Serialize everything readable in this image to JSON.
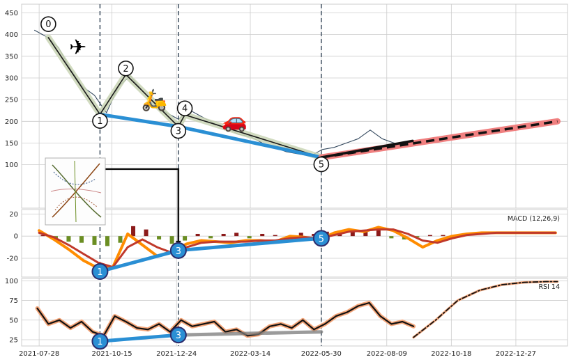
{
  "chart_data": [
    {
      "panel": "price",
      "type": "line",
      "ylim": [
        0,
        470
      ],
      "ytick_labels": [
        "450",
        "400",
        "350",
        "300",
        "250",
        "200",
        "150",
        "100"
      ],
      "yticks": [
        450,
        400,
        350,
        300,
        250,
        200,
        150,
        100
      ],
      "grid": true,
      "series": [
        {
          "role": "close",
          "color": "#34495e",
          "x": [
            "2021-07-23",
            "2021-08-05",
            "2021-08-18",
            "2021-08-31",
            "2021-09-13",
            "2021-09-26",
            "2021-10-09",
            "2021-10-22",
            "2021-11-04",
            "2021-11-17",
            "2021-11-30",
            "2021-12-13",
            "2021-12-26",
            "2022-01-08",
            "2022-01-21",
            "2022-02-03",
            "2022-02-16",
            "2022-03-01",
            "2022-03-14",
            "2022-03-27",
            "2022-04-09",
            "2022-04-22",
            "2022-05-05",
            "2022-05-18",
            "2022-05-31",
            "2022-06-13",
            "2022-06-26",
            "2022-07-09",
            "2022-07-22",
            "2022-08-04",
            "2022-08-17",
            "2022-08-30"
          ],
          "y": [
            410,
            395,
            370,
            320,
            280,
            260,
            220,
            280,
            305,
            270,
            240,
            220,
            205,
            225,
            210,
            195,
            185,
            170,
            165,
            150,
            140,
            130,
            125,
            120,
            135,
            140,
            150,
            160,
            180,
            160,
            150,
            145
          ]
        }
      ],
      "zigzag": {
        "x": [
          "2021-08-07",
          "2021-10-02",
          "2021-10-30",
          "2021-12-26",
          "2022-01-02",
          "2022-05-30"
        ],
        "y": [
          393,
          216,
          308,
          188,
          215,
          117
        ],
        "color": "#1a1a1a",
        "halo_color": "#c9d5b5"
      },
      "trend_lines": [
        {
          "x": [
            "2021-10-02",
            "2021-12-26",
            "2022-05-30"
          ],
          "y": [
            216,
            188,
            117
          ],
          "color": "#2a8fd4"
        },
        {
          "x": [
            "2022-05-30",
            "2022-09-06"
          ],
          "y": [
            117,
            155
          ],
          "color": "#111111"
        }
      ],
      "projection": {
        "x": [
          "2022-05-30",
          "2023-02-10"
        ],
        "y": [
          117,
          200
        ],
        "color": "#111111",
        "halo_color": "#f08080",
        "style": "dashed"
      },
      "wave_labels": [
        {
          "label": "0",
          "x": "2021-08-07",
          "y": 424
        },
        {
          "label": "1",
          "x": "2021-10-02",
          "y": 201
        },
        {
          "label": "2",
          "x": "2021-10-30",
          "y": 322
        },
        {
          "label": "3",
          "x": "2021-12-26",
          "y": 178
        },
        {
          "label": "4",
          "x": "2022-01-02",
          "y": 230
        },
        {
          "label": "5",
          "x": "2022-05-30",
          "y": 101
        }
      ],
      "icons": [
        {
          "name": "airplane-icon",
          "glyph": "✈",
          "x": "2021-09-08",
          "y": 368
        },
        {
          "name": "scooter-icon",
          "glyph": "🛵",
          "x": "2021-11-30",
          "y": 247
        },
        {
          "name": "car-icon",
          "glyph": "🚗",
          "x": "2022-02-25",
          "y": 200
        }
      ]
    },
    {
      "panel": "macd",
      "type": "line",
      "label": "MACD (12,26,9)",
      "ylim": [
        -37,
        24
      ],
      "ytick_labels": [
        "20",
        "0",
        "-20"
      ],
      "yticks": [
        20,
        0,
        -20
      ],
      "grid": true,
      "histogram": {
        "x": [
          "2021-08-01",
          "2021-08-15",
          "2021-08-29",
          "2021-09-12",
          "2021-09-26",
          "2021-10-10",
          "2021-10-24",
          "2021-11-07",
          "2021-11-21",
          "2021-12-05",
          "2021-12-19",
          "2022-01-02",
          "2022-01-16",
          "2022-01-30",
          "2022-02-13",
          "2022-02-27",
          "2022-03-13",
          "2022-03-27",
          "2022-04-10",
          "2022-04-24",
          "2022-05-08",
          "2022-05-22",
          "2022-06-05",
          "2022-06-19",
          "2022-07-03",
          "2022-07-17",
          "2022-07-31",
          "2022-08-14",
          "2022-08-28",
          "2022-09-11",
          "2022-09-25",
          "2022-10-09",
          "2022-10-23"
        ],
        "y": [
          1,
          -2,
          -5,
          -6,
          -8,
          -9,
          -6,
          9,
          6,
          -3,
          -7,
          -4,
          2,
          -2,
          2,
          3,
          -2,
          2,
          1,
          -1,
          3,
          2,
          4,
          5,
          5,
          4,
          6,
          -2,
          -3,
          -1,
          1,
          1,
          0
        ],
        "pos_color": "#8b1a1a",
        "neg_color": "#6b8e23"
      },
      "series": [
        {
          "role": "macd",
          "color": "#ff8c00",
          "x": [
            "2021-07-28",
            "2021-08-13",
            "2021-08-29",
            "2021-09-14",
            "2021-09-30",
            "2021-10-16",
            "2021-11-01",
            "2021-11-17",
            "2021-12-03",
            "2021-12-19",
            "2022-01-04",
            "2022-01-20",
            "2022-02-05",
            "2022-02-21",
            "2022-03-09",
            "2022-03-25",
            "2022-04-10",
            "2022-04-26",
            "2022-05-12",
            "2022-05-28",
            "2022-06-13",
            "2022-06-29",
            "2022-07-15",
            "2022-07-31",
            "2022-08-16",
            "2022-09-01",
            "2022-09-17",
            "2022-10-03",
            "2022-10-19",
            "2022-11-04",
            "2022-11-20",
            "2022-12-06",
            "2022-12-22",
            "2023-01-07",
            "2023-01-23",
            "2023-02-08"
          ],
          "y": [
            5,
            -3,
            -12,
            -22,
            -29,
            -28,
            2,
            -8,
            -18,
            -14,
            -7,
            -4,
            -5,
            -6,
            -4,
            -4,
            -5,
            0,
            -1,
            -3,
            3,
            6,
            4,
            8,
            5,
            -2,
            -10,
            -4,
            0,
            2,
            3,
            3,
            3,
            3,
            3,
            3
          ]
        },
        {
          "role": "signal",
          "color": "#c0392b",
          "x": [
            "2021-07-28",
            "2021-08-13",
            "2021-08-29",
            "2021-09-14",
            "2021-09-30",
            "2021-10-16",
            "2021-11-01",
            "2021-11-17",
            "2021-12-03",
            "2021-12-19",
            "2022-01-04",
            "2022-01-20",
            "2022-02-05",
            "2022-02-21",
            "2022-03-09",
            "2022-03-25",
            "2022-04-10",
            "2022-04-26",
            "2022-05-12",
            "2022-05-28",
            "2022-06-13",
            "2022-06-29",
            "2022-07-15",
            "2022-07-31",
            "2022-08-16",
            "2022-09-01",
            "2022-09-17",
            "2022-10-03",
            "2022-10-19",
            "2022-11-04",
            "2022-11-20",
            "2022-12-06",
            "2022-12-22",
            "2023-01-07",
            "2023-01-23",
            "2023-02-08"
          ],
          "y": [
            3,
            -1,
            -8,
            -16,
            -24,
            -28,
            -10,
            -3,
            -10,
            -15,
            -10,
            -6,
            -5,
            -5,
            -5,
            -4,
            -4,
            -2,
            -1,
            -2,
            1,
            4,
            5,
            6,
            6,
            2,
            -4,
            -6,
            -2,
            1,
            2,
            3,
            3,
            3,
            3,
            3
          ]
        }
      ],
      "trend_line": {
        "x": [
          "2021-10-02",
          "2021-12-26",
          "2022-05-30"
        ],
        "y": [
          -32,
          -13,
          -2
        ],
        "color": "#2a8fd4"
      },
      "wave_labels": [
        {
          "label": "1",
          "x": "2021-10-02",
          "y": -32
        },
        {
          "label": "3",
          "x": "2021-12-26",
          "y": -13
        },
        {
          "label": "5",
          "x": "2022-05-30",
          "y": -2
        }
      ]
    },
    {
      "panel": "rsi",
      "type": "line",
      "label": "RSI 14",
      "ylim": [
        17,
        103
      ],
      "ytick_labels": [
        "100",
        "75",
        "50",
        "25"
      ],
      "yticks": [
        100,
        75,
        50,
        25
      ],
      "grid": true,
      "series": [
        {
          "role": "rsi",
          "color": "#111111",
          "halo_color": "#f4a67a",
          "x": [
            "2021-07-26",
            "2021-08-07",
            "2021-08-19",
            "2021-08-31",
            "2021-09-12",
            "2021-09-24",
            "2021-10-06",
            "2021-10-18",
            "2021-10-30",
            "2021-11-11",
            "2021-11-23",
            "2021-12-05",
            "2021-12-17",
            "2021-12-29",
            "2022-01-10",
            "2022-01-22",
            "2022-02-03",
            "2022-02-15",
            "2022-02-27",
            "2022-03-11",
            "2022-03-23",
            "2022-04-04",
            "2022-04-16",
            "2022-04-28",
            "2022-05-10",
            "2022-05-22",
            "2022-06-03",
            "2022-06-15",
            "2022-06-27",
            "2022-07-09",
            "2022-07-21",
            "2022-08-02",
            "2022-08-14",
            "2022-08-26",
            "2022-09-07"
          ],
          "y": [
            65,
            45,
            50,
            40,
            48,
            35,
            30,
            55,
            48,
            40,
            38,
            45,
            35,
            50,
            42,
            45,
            48,
            35,
            38,
            30,
            32,
            42,
            45,
            40,
            50,
            38,
            45,
            55,
            60,
            68,
            72,
            55,
            45,
            48,
            42
          ]
        },
        {
          "role": "rsi-projection",
          "color": "#111111",
          "halo_color": "#f4a67a",
          "style": "dash-dot",
          "x": [
            "2022-09-07",
            "2022-10-01",
            "2022-10-25",
            "2022-11-18",
            "2022-12-12",
            "2023-01-05",
            "2023-01-29",
            "2023-02-10"
          ],
          "y": [
            28,
            50,
            75,
            88,
            95,
            98,
            99,
            99
          ]
        }
      ],
      "trend_lines": [
        {
          "x": [
            "2021-10-02",
            "2021-12-26"
          ],
          "y": [
            23,
            31
          ],
          "color": "#2a8fd4"
        },
        {
          "x": [
            "2021-12-26",
            "2022-05-30"
          ],
          "y": [
            31,
            35
          ],
          "color": "#7a7a7a"
        }
      ],
      "wave_labels": [
        {
          "label": "1",
          "x": "2021-10-02",
          "y": 23
        },
        {
          "label": "3",
          "x": "2021-12-26",
          "y": 31
        }
      ]
    }
  ],
  "x_axis": {
    "range": [
      "2021-07-09",
      "2023-02-21"
    ],
    "tick_dates": [
      "2021-07-28",
      "2021-10-15",
      "2021-12-24",
      "2022-03-14",
      "2022-05-30",
      "2022-08-09",
      "2022-10-18",
      "2022-12-27"
    ],
    "tick_labels": [
      "2021-07-28",
      "2021-10-15",
      "2021-12-24",
      "2022-03-14",
      "2022-05-30",
      "2022-08-09",
      "2022-10-18",
      "2022-12-27"
    ]
  },
  "vertical_markers": {
    "x": [
      "2021-10-02",
      "2021-12-26",
      "2022-05-30"
    ],
    "color": "#4a5a6a",
    "style": "dashed"
  },
  "connector": {
    "from": {
      "x": "2021-09-24",
      "y": 90
    },
    "to_date": "2021-12-26",
    "color": "#111111"
  },
  "inset": {
    "name": "pattern-thumbnail"
  },
  "colors": {
    "wave_circle": "#2a8fd4",
    "wave_circle_border": "#2c2c6c",
    "grid": "#cccccc"
  }
}
